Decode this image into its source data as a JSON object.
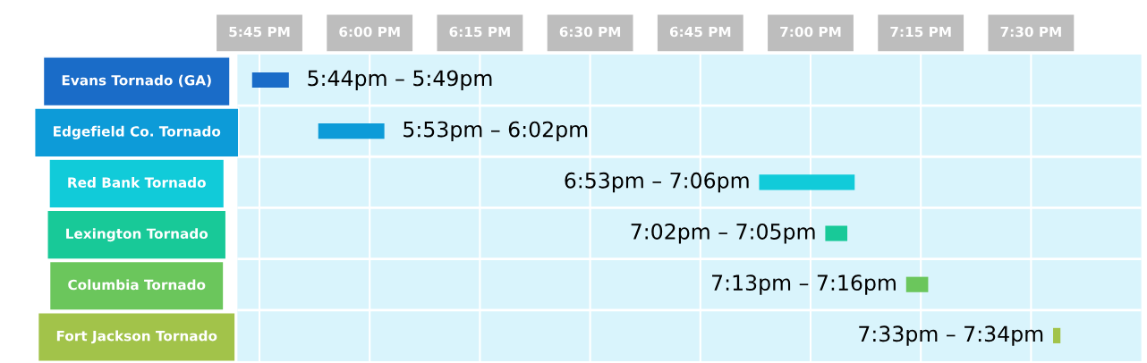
{
  "chart_data": {
    "type": "bar",
    "orientation": "horizontal",
    "categories": [
      "Evans Tornado (GA)",
      "Edgefield Co. Tornado",
      "Red Bank Tornado",
      "Lexington Tornado",
      "Columbia Tornado",
      "Fort Jackson Tornado"
    ],
    "base": [
      17.7333,
      17.8833,
      18.8833,
      19.0333,
      19.2167,
      19.55
    ],
    "values": [
      0.0833,
      0.15,
      0.2167,
      0.05,
      0.05,
      0.0167
    ],
    "colors": [
      "#1a6cc8",
      "#0d9bd8",
      "#11cbd9",
      "#18c998",
      "#6bc65c",
      "#a2c34a"
    ],
    "value_labels": [
      "5:44pm – 5:49pm",
      "5:53pm – 6:02pm",
      "6:53pm – 7:06pm",
      "7:02pm – 7:05pm",
      "7:13pm – 7:16pm",
      "7:33pm – 7:34pm"
    ],
    "xlim": [
      17.7,
      19.75
    ],
    "xticks": [
      {
        "value": 17.75,
        "label": "5:45 PM"
      },
      {
        "value": 18.0,
        "label": "6:00 PM"
      },
      {
        "value": 18.25,
        "label": "6:15 PM"
      },
      {
        "value": 18.5,
        "label": "6:30 PM"
      },
      {
        "value": 18.75,
        "label": "6:45 PM"
      },
      {
        "value": 19.0,
        "label": "7:00 PM"
      },
      {
        "value": 19.25,
        "label": "7:15 PM"
      },
      {
        "value": 19.5,
        "label": "7:30 PM"
      }
    ],
    "grid": "x",
    "legend": false
  }
}
